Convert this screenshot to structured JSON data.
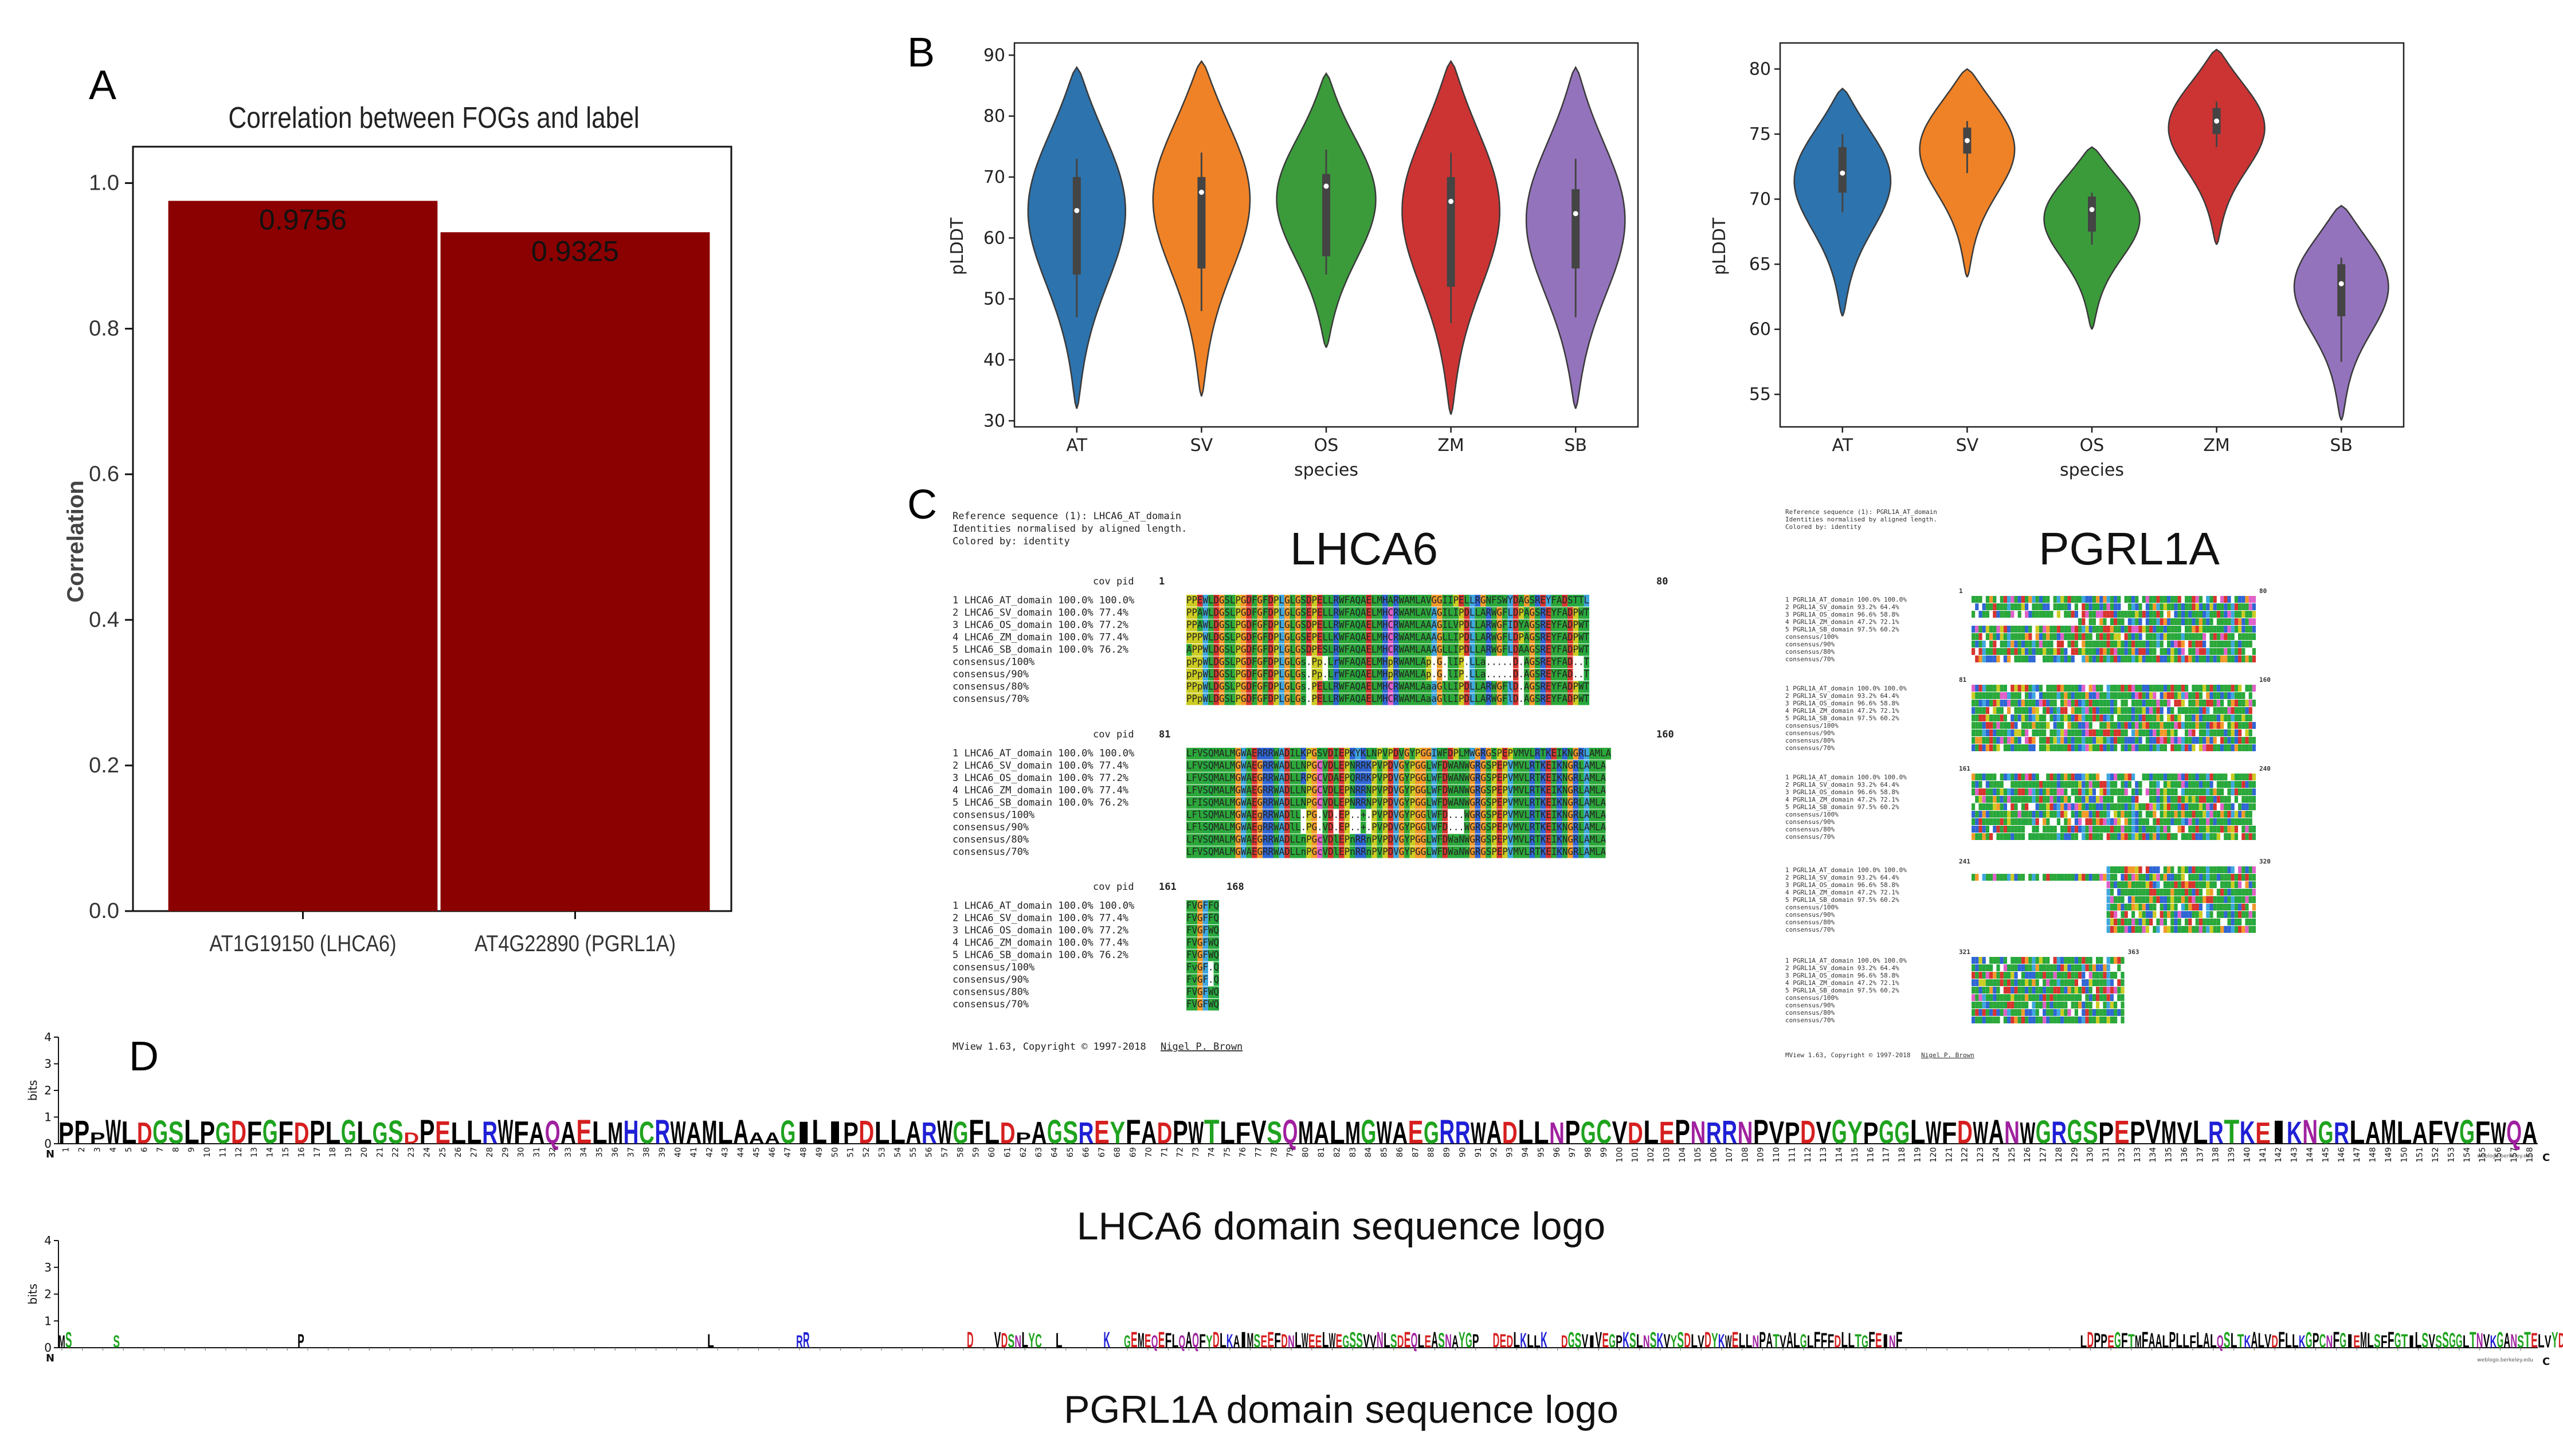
{
  "panels": {
    "a": "A",
    "b": "B",
    "c": "C",
    "d": "D"
  },
  "chart_data": [
    {
      "type": "bar",
      "title": "Correlation between FOGs and label",
      "ylabel": "Correlation",
      "categories": [
        "AT1G19150 (LHCA6)",
        "AT4G22890 (PGRL1A)"
      ],
      "values": [
        0.9756,
        0.9325
      ],
      "value_labels": [
        "0.9756",
        "0.9325"
      ],
      "ylim": [
        0,
        1.05
      ],
      "yticks": [
        "0.0",
        "0.2",
        "0.4",
        "0.6",
        "0.8",
        "1.0"
      ],
      "color": "#8b0000"
    },
    {
      "type": "violin",
      "xlabel": "species",
      "ylabel": "pLDDT",
      "ylim": [
        29,
        92
      ],
      "yticks": [
        30,
        40,
        50,
        60,
        70,
        80,
        90
      ],
      "categories": [
        "AT",
        "SV",
        "OS",
        "ZM",
        "SB"
      ],
      "colors": [
        "#2d73ad",
        "#ef8226",
        "#3b9b3b",
        "#cc3434",
        "#9473bd"
      ],
      "stats": [
        {
          "min": 32,
          "max": 88,
          "q1": 54,
          "median": 64.5,
          "q3": 70,
          "wmin": 47,
          "wmax": 73,
          "peak": 66
        },
        {
          "min": 34,
          "max": 89,
          "q1": 55,
          "median": 67.5,
          "q3": 70,
          "wmin": 48,
          "wmax": 74,
          "peak": 68
        },
        {
          "min": 42,
          "max": 87,
          "q1": 57,
          "median": 68.5,
          "q3": 70.5,
          "wmin": 54,
          "wmax": 74.5,
          "peak": 67
        },
        {
          "min": 31,
          "max": 89,
          "q1": 52,
          "median": 66,
          "q3": 70,
          "wmin": 46,
          "wmax": 74,
          "peak": 66
        },
        {
          "min": 32,
          "max": 88,
          "q1": 55,
          "median": 64,
          "q3": 68,
          "wmin": 47,
          "wmax": 73,
          "peak": 64
        }
      ]
    },
    {
      "type": "violin",
      "xlabel": "species",
      "ylabel": "pLDDT",
      "ylim": [
        52.5,
        82
      ],
      "yticks": [
        55,
        60,
        65,
        70,
        75,
        80
      ],
      "categories": [
        "AT",
        "SV",
        "OS",
        "ZM",
        "SB"
      ],
      "colors": [
        "#2d73ad",
        "#ef8226",
        "#3b9b3b",
        "#cc3434",
        "#9473bd"
      ],
      "stats": [
        {
          "min": 61,
          "max": 78.5,
          "q1": 70.5,
          "median": 72,
          "q3": 74,
          "wmin": 69,
          "wmax": 75,
          "peak": 72
        },
        {
          "min": 64,
          "max": 80,
          "q1": 73.5,
          "median": 74.5,
          "q3": 75.5,
          "wmin": 72,
          "wmax": 76,
          "peak": 74.5
        },
        {
          "min": 60,
          "max": 74,
          "q1": 67.5,
          "median": 69.2,
          "q3": 70.2,
          "wmin": 66.5,
          "wmax": 70.5,
          "peak": 69
        },
        {
          "min": 66.5,
          "max": 81.5,
          "q1": 75,
          "median": 76,
          "q3": 77,
          "wmin": 74,
          "wmax": 77.5,
          "peak": 76
        },
        {
          "min": 53,
          "max": 69.5,
          "q1": 61,
          "median": 63.5,
          "q3": 65,
          "wmin": 57.5,
          "wmax": 65.5,
          "peak": 64
        }
      ]
    }
  ],
  "alignments": {
    "lhca6": {
      "title": "LHCA6",
      "header": [
        "Reference sequence (1): LHCA6_AT_domain",
        "Identities normalised by aligned length.",
        "Colored by: identity"
      ],
      "col_header": "cov    pid",
      "blocks": [
        {
          "range_start": "1",
          "range_end": "80",
          "rows": [
            {
              "label": "1 LHCA6_AT_domain 100.0% 100.0%",
              "seq": "PPEWLDGSLPGDFGFDPLGLGSDPELLRWFAQAELMHARWAMLAVGGIIPELLRGNFSWYDAGSREYFADSTTL"
            },
            {
              "label": "2 LHCA6_SV_domain 100.0%  77.4%",
              "seq": "PPAWLDGSLPGDFGFDPLGLGSEPELLRWFAQAELMHCRWAMLAVAGILIPDLLARWGFLDPAGSREYFADPWT"
            },
            {
              "label": "3 LHCA6_OS_domain 100.0%  77.2%",
              "seq": "PPAWLDGSLPGDFGFDPLGLGSDPELLRWFAQAELMHCRWAMLAAAGILVPDLLARWGFIDYAGSREYFADPWT"
            },
            {
              "label": "4 LHCA6_ZM_domain 100.0%  77.4%",
              "seq": "PPPWLDGSLPGDFGFDPLGLGSEPELLKWFAQAELMHCRWAMLAAAGLLIPDLLARWGFLDPAGSREYFADPWT"
            },
            {
              "label": "5 LHCA6_SB_domain 100.0%  76.2%",
              "seq": "APPWLDGSLPGDFGFDPLGLGSDPESLRWFAQAELMHCRWAMLAAAGLLIPDLLARWGFLDAAGSREYFADPWT"
            },
            {
              "label": "  consensus/100%",
              "seq": "pPpWLDGSLPGDFGFDPLGLGs.Pp.LrWFAQAELMHpRWAMLAp.G.lIP.LLa.....D.AGSREYFAD..T"
            },
            {
              "label": "  consensus/90%",
              "seq": "pPpWLDGSLPGDFGFDPLGLGs.Pp.LrWFAQAELMHpRWAMLAp.G.lIP.LLa.....D.AGSREYFAD..T"
            },
            {
              "label": "  consensus/80%",
              "seq": "PPpWLDGSLPGDFGFDPLGLGs.PELLRWFAQAELMHCRWAMLAaaGlLIPDLLARWGFlD.AGSREYFADPWT"
            },
            {
              "label": "  consensus/70%",
              "seq": "PPpWLDGSLPGDFGFDPLGLGs.PELLRWFAQAELMHCRWAMLAaaGlLIPDLLARWGFlD.AGSREYFADPWT"
            }
          ]
        },
        {
          "range_start": "81",
          "range_end": "160",
          "rows": [
            {
              "label": "1 LHCA6_AT_domain 100.0% 100.0%",
              "seq": "LFVSQMALMGWAERRRWADILKPGSVDIEPKYKLNPVPDVGYPGGIWFDPLMWGRGSPEPVMVLRTKEIKNGRLAMLA"
            },
            {
              "label": "2 LHCA6_SV_domain 100.0%  77.4%",
              "seq": "LFVSQMALMGWAEGRRWADLLNPGCVDLEPNRRKPVPDVGYPGGLWFDWANWGRGSPEPVMVLRTKEIKNGRLAMLA"
            },
            {
              "label": "3 LHCA6_OS_domain 100.0%  77.2%",
              "seq": "LFVSQMALMGWAEGRRWADLLRPGCVDAEPQRRKPVPDVGYPGGLWFDWANWGRGSPEPVMVLRTKEIKNGRLAMLA"
            },
            {
              "label": "4 LHCA6_ZM_domain 100.0%  77.4%",
              "seq": "LFVSQMALMGWAEGRRWADLLNPGCVDLEPNRRNPVPDVGYPGGLWFDWANWGRGSPEPVMVLRTKEIKNGRLAMLA"
            },
            {
              "label": "5 LHCA6_SB_domain 100.0%  76.2%",
              "seq": "LFISQMALMGWAEGRRWADLLNPGCVDLEPNRRNPVPDVGYPGGLWFDWANWGRGSPEPVMVLRTKEIKNGRLAMLA"
            },
            {
              "label": "  consensus/100%",
              "seq": "LFlSQMALMGWAEgRRWADlL.PG.VD.EP..+.PVPDVGYPGGlWFD...WGRGSPEPVMVLRTKEIKNGRLAMLA"
            },
            {
              "label": "  consensus/90%",
              "seq": "LFlSQMALMGWAEgRRWADlL.PG.VD.EP..+.PVPDVGYPGGlWFD...WGRGSPEPVMVLRTKEIKNGRLAMLA"
            },
            {
              "label": "  consensus/80%",
              "seq": "LFVSQMALMGWAEGRRWADLLnPGcVDlEPnRRnPVPDVGYPGGLWFDWaNWGRGSPEPVMVLRTKEIKNGRLAMLA"
            },
            {
              "label": "  consensus/70%",
              "seq": "LFVSQMALMGWAEGRRWADLLnPGcVDlEPnRRnPVPDVGYPGGLWFDWaNWGRGSPEPVMVLRTKEIKNGRLAMLA"
            }
          ]
        },
        {
          "range_start": "161",
          "range_end": "168",
          "rows": [
            {
              "label": "1 LHCA6_AT_domain 100.0% 100.0%",
              "seq": "FVGFFQ"
            },
            {
              "label": "2 LHCA6_SV_domain 100.0%  77.4%",
              "seq": "FVGFFQ"
            },
            {
              "label": "3 LHCA6_OS_domain 100.0%  77.2%",
              "seq": "FVGFWQ"
            },
            {
              "label": "4 LHCA6_ZM_domain 100.0%  77.4%",
              "seq": "FVGFWQ"
            },
            {
              "label": "5 LHCA6_SB_domain 100.0%  76.2%",
              "seq": "FVGFWQ"
            },
            {
              "label": "  consensus/100%",
              "seq": "FvGF.Q"
            },
            {
              "label": "  consensus/90%",
              "seq": "FvGF.Q"
            },
            {
              "label": "  consensus/80%",
              "seq": "FVGFWQ"
            },
            {
              "label": "  consensus/70%",
              "seq": "FVGFWQ"
            }
          ]
        }
      ],
      "footer": "MView 1.63, Copyright © 1997-2018",
      "footer_link": "Nigel P. Brown"
    },
    "pgrl1a": {
      "title": "PGRL1A",
      "header": [
        "Reference sequence (1): PGRL1A_AT_domain",
        "Identities normalised by aligned length.",
        "Colored by: identity"
      ],
      "ranges": [
        [
          "1",
          "80"
        ],
        [
          "81",
          "160"
        ],
        [
          "161",
          "240"
        ],
        [
          "241",
          "320"
        ],
        [
          "321",
          "363"
        ]
      ],
      "labels": [
        "1 PGRL1A_AT_domain 100.0% 100.0%",
        "2 PGRL1A_SV_domain  93.2%  64.4%",
        "3 PGRL1A_OS_domain  96.6%  58.8%",
        "4 PGRL1A_ZM_domain  47.2%  72.1%",
        "5 PGRL1A_SB_domain  97.5%  60.2%",
        "  consensus/100%",
        "  consensus/90%",
        "  consensus/80%",
        "  consensus/70%"
      ],
      "footer": "MView 1.63, Copyright © 1997-2018",
      "footer_link": "Nigel P. Brown"
    }
  },
  "logos": {
    "lhca6": {
      "caption": "LHCA6 domain sequence logo",
      "axis_label": "bits",
      "yticks": [
        "0",
        "1",
        "2",
        "3",
        "4"
      ],
      "n_label": "N",
      "c_label": "C",
      "credit": "weblogo.berkeley.edu",
      "positions": 168,
      "sequence": "PPpWLDGSLPGDFGFDPLGLGSdPELLRWFAQAELMHCRWAMLAaaGILIPDLLARWGFLDpAGSREYFADPWTLFVSQMALMGWAEGRRWADLLNPGCVDLEPNRRNPVPDVGYPGGLWFDWANWGRGSPEPVMVLRTKEIKNGRLAMLAFVGFWQA"
    },
    "pgrl1a": {
      "caption": "PGRL1A domain sequence logo",
      "axis_label": "bits",
      "yticks": [
        "0",
        "1",
        "2",
        "3",
        "4"
      ],
      "n_label": "N",
      "c_label": "C",
      "credit": "weblogo.berkeley.edu",
      "positions": 363,
      "segments": [
        {
          "from": 0,
          "text": "MS"
        },
        {
          "from": 8,
          "text": "S"
        },
        {
          "from": 35,
          "text": "P"
        },
        {
          "from": 95,
          "text": "L"
        },
        {
          "from": 108,
          "text": "RR"
        },
        {
          "from": 133,
          "text": "D"
        },
        {
          "from": 137,
          "text": "VDSNLYC"
        },
        {
          "from": 146,
          "text": "L"
        },
        {
          "from": 153,
          "text": "K"
        },
        {
          "from": 156,
          "text": "GEMEQEFLQAQFYDLKAIMSEEFDNLWEELWEGSSVVNLSDEQLEASNAY"
        },
        {
          "from": 206,
          "text": "GP"
        },
        {
          "from": 210,
          "text": "DEDLKLLK"
        },
        {
          "from": 220,
          "text": "DGSVIVEGPKSLNSKVYSDLVDYKWELLNPATVALGLFFFDLLTGFEINF"
        },
        {
          "from": 296,
          "text": "LDPPEGFTMFAALPLLFLALQSLTKALVDFLLKGPCNFGIEMLSFFGTILSVSSGGLTNVKGANSTELVYDSVSGFTLPEQSA"
        }
      ]
    }
  },
  "aa_colors": {
    "hydrophobic": "#000000",
    "basic": "#1f1fd6",
    "acidic": "#d61f1f",
    "polar": "#1fa31f",
    "amide": "#a020a0"
  }
}
